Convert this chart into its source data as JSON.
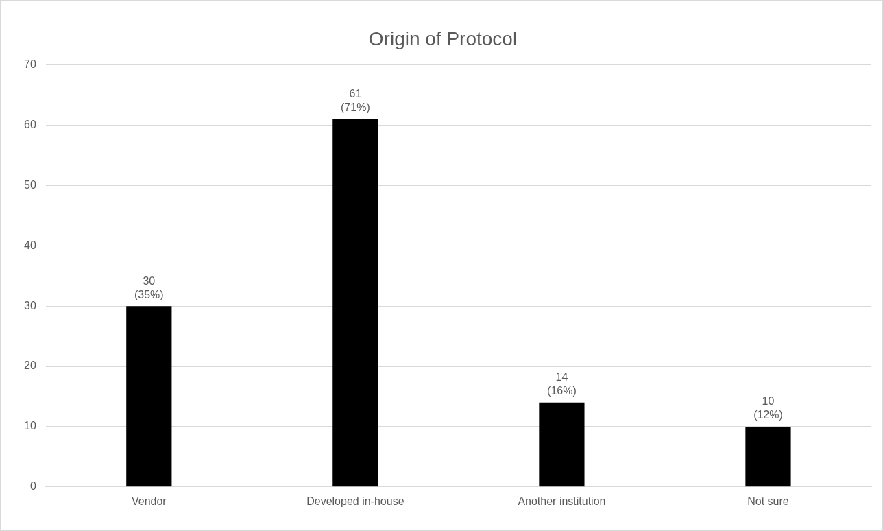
{
  "chart_data": {
    "type": "bar",
    "title": "Origin of Protocol",
    "categories": [
      "Vendor",
      "Developed in-house",
      "Another institution",
      "Not sure"
    ],
    "values": [
      30,
      61,
      14,
      10
    ],
    "value_labels": [
      "30 (35%)",
      "61 (71%)",
      "14 (16%)",
      "10 (12%)"
    ],
    "color": "#000000",
    "ylim": [
      0,
      70
    ],
    "yticks": [
      0,
      10,
      20,
      30,
      40,
      50,
      60,
      70
    ],
    "grid": "y",
    "legend": false
  }
}
